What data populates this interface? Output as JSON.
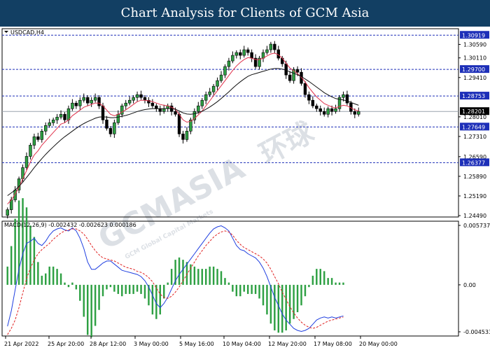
{
  "header": {
    "title": "Chart Analysis for Clients of GCM Asia"
  },
  "symbol": "USDCAD,H4",
  "watermark": {
    "brand": "GCMASIA",
    "sub": "GCM Global Capital Markets",
    "cjk": "环球"
  },
  "chart_data": [
    {
      "type": "candlestick",
      "title": "USDCAD,H4",
      "ylim": [
        1.2449,
        1.311
      ],
      "y_ticks": [
        "1.30590",
        "1.30110",
        "1.29410",
        "1.28010",
        "1.27310",
        "1.26590",
        "1.25890",
        "1.25190",
        "1.24490"
      ],
      "x_ticks": [
        "21 Apr 2022",
        "25 Apr 20:00",
        "28 Apr 12:00",
        "3 May 00:00",
        "5 May 16:00",
        "10 May 04:00",
        "12 May 20:00",
        "17 May 08:00",
        "20 May 00:00"
      ],
      "levels": [
        {
          "value": 1.30919,
          "label": "1.30919"
        },
        {
          "value": 1.297,
          "label": "1.29700"
        },
        {
          "value": 1.28753,
          "label": "1.28753"
        },
        {
          "value": 1.27649,
          "label": "1.27649"
        },
        {
          "value": 1.26377,
          "label": "1.26377"
        }
      ],
      "current_price": {
        "value": 1.28201,
        "label": "1.28201"
      },
      "closes": [
        1.247,
        1.2505,
        1.254,
        1.258,
        1.262,
        1.266,
        1.27,
        1.273,
        1.272,
        1.275,
        1.277,
        1.278,
        1.279,
        1.28,
        1.281,
        1.279,
        1.283,
        1.285,
        1.284,
        1.286,
        1.287,
        1.285,
        1.286,
        1.287,
        1.284,
        1.279,
        1.276,
        1.274,
        1.278,
        1.281,
        1.284,
        1.285,
        1.286,
        1.287,
        1.288,
        1.287,
        1.286,
        1.285,
        1.284,
        1.283,
        1.282,
        1.283,
        1.284,
        1.282,
        1.281,
        1.274,
        1.272,
        1.275,
        1.279,
        1.282,
        1.284,
        1.286,
        1.288,
        1.289,
        1.291,
        1.293,
        1.295,
        1.298,
        1.3,
        1.302,
        1.303,
        1.302,
        1.304,
        1.303,
        1.301,
        1.298,
        1.301,
        1.303,
        1.304,
        1.306,
        1.304,
        1.301,
        1.299,
        1.295,
        1.293,
        1.297,
        1.296,
        1.292,
        1.288,
        1.286,
        1.284,
        1.283,
        1.282,
        1.281,
        1.283,
        1.282,
        1.283,
        1.287,
        1.288,
        1.285,
        1.282,
        1.281,
        1.282
      ],
      "series": [
        {
          "name": "",
          "color": "#e0314b",
          "values": [
            1.249,
            1.2505,
            1.2525,
            1.255,
            1.258,
            1.261,
            1.264,
            1.2665,
            1.268,
            1.27,
            1.2715,
            1.273,
            1.2745,
            1.276,
            1.2775,
            1.278,
            1.279,
            1.2805,
            1.2815,
            1.2825,
            1.2835,
            1.284,
            1.2845,
            1.285,
            1.285,
            1.284,
            1.2825,
            1.281,
            1.2805,
            1.281,
            1.2818,
            1.2826,
            1.2835,
            1.2845,
            1.2855,
            1.286,
            1.286,
            1.2858,
            1.2855,
            1.285,
            1.2845,
            1.2842,
            1.284,
            1.2835,
            1.2828,
            1.281,
            1.279,
            1.2782,
            1.2785,
            1.2795,
            1.2808,
            1.2822,
            1.284,
            1.2858,
            1.2876,
            1.2894,
            1.2912,
            1.293,
            1.2948,
            1.2966,
            1.2982,
            1.2995,
            1.3005,
            1.3012,
            1.301,
            1.3005,
            1.3005,
            1.301,
            1.3018,
            1.3025,
            1.3028,
            1.3022,
            1.301,
            1.2992,
            1.2975,
            1.2965,
            1.2955,
            1.2942,
            1.2925,
            1.2905,
            1.2888,
            1.2872,
            1.286,
            1.2848,
            1.2842,
            1.2836,
            1.2833,
            1.2838,
            1.2842,
            1.284,
            1.2833,
            1.2826,
            1.2822
          ]
        },
        {
          "name": "",
          "color": "#111111",
          "values": [
            1.252,
            1.253,
            1.254,
            1.2553,
            1.2568,
            1.2585,
            1.2602,
            1.262,
            1.2636,
            1.2652,
            1.2667,
            1.2681,
            1.2694,
            1.2707,
            1.2719,
            1.273,
            1.274,
            1.275,
            1.276,
            1.2769,
            1.2777,
            1.2784,
            1.279,
            1.2796,
            1.28,
            1.2801,
            1.28,
            1.2798,
            1.2798,
            1.28,
            1.2803,
            1.2806,
            1.281,
            1.2815,
            1.282,
            1.2824,
            1.2827,
            1.2829,
            1.283,
            1.283,
            1.283,
            1.283,
            1.2831,
            1.283,
            1.2828,
            1.2822,
            1.2815,
            1.2811,
            1.281,
            1.2812,
            1.2816,
            1.2821,
            1.2828,
            1.2836,
            1.2845,
            1.2855,
            1.2866,
            1.2878,
            1.289,
            1.2903,
            1.2915,
            1.2926,
            1.2936,
            1.2945,
            1.2951,
            1.2955,
            1.2959,
            1.2963,
            1.2967,
            1.2971,
            1.2973,
            1.2973,
            1.2971,
            1.2967,
            1.2961,
            1.2956,
            1.2951,
            1.2944,
            1.2936,
            1.2927,
            1.2917,
            1.2907,
            1.2897,
            1.2887,
            1.2879,
            1.2872,
            1.2866,
            1.2863,
            1.2861,
            1.2857,
            1.2852,
            1.2847,
            1.2842
          ]
        }
      ]
    },
    {
      "type": "macd",
      "title": "MACD(12,26,9) -0.002432 -0.002623 0.000186",
      "params": "MACD(12,26,9)",
      "values_label": {
        "macd": "-0.002432",
        "signal": "-0.002623",
        "hist": "0.000186"
      },
      "ylim": [
        -0.004533,
        0.005737
      ],
      "y_ticks": [
        "0.005737",
        "0.00",
        "-0.004533"
      ],
      "series": [
        {
          "name": "",
          "color": "#1f3fe0",
          "values": [
            -0.004,
            -0.0025,
            -0.0005,
            0.0015,
            0.003,
            0.004,
            0.0042,
            0.0045,
            0.004,
            0.0038,
            0.0042,
            0.0048,
            0.0052,
            0.0054,
            0.0055,
            0.0053,
            0.0052,
            0.0055,
            0.0052,
            0.0045,
            0.0035,
            0.0022,
            0.0015,
            0.0015,
            0.0018,
            0.0021,
            0.0023,
            0.0023,
            0.002,
            0.0017,
            0.0014,
            0.0013,
            0.0012,
            0.0011,
            0.001,
            0.0008,
            0.0004,
            -0.0002,
            -0.001,
            -0.0018,
            -0.0022,
            -0.0018,
            -0.0012,
            -0.0004,
            0.0004,
            0.001,
            0.0015,
            0.002,
            0.0025,
            0.003,
            0.0035,
            0.004,
            0.0045,
            0.005,
            0.0054,
            0.0056,
            0.0057,
            0.0055,
            0.0052,
            0.0045,
            0.0038,
            0.0034,
            0.0033,
            0.003,
            0.0028,
            0.0026,
            0.0022,
            0.0016,
            0.0008,
            -0.0002,
            -0.0012,
            -0.002,
            -0.0028,
            -0.0034,
            -0.0038,
            -0.0042,
            -0.0044,
            -0.0045,
            -0.0044,
            -0.0042,
            -0.0038,
            -0.0034,
            -0.0032,
            -0.0031,
            -0.0032,
            -0.0031,
            -0.0032,
            -0.0031,
            -0.003
          ]
        },
        {
          "name": "",
          "color": "#e02020",
          "values": [
            -0.0048,
            -0.0042,
            -0.0034,
            -0.0022,
            -0.0008,
            0.0006,
            0.0016,
            0.0024,
            0.003,
            0.0034,
            0.0037,
            0.004,
            0.0044,
            0.0047,
            0.005,
            0.0052,
            0.0053,
            0.0054,
            0.0054,
            0.0052,
            0.0049,
            0.0044,
            0.0038,
            0.0033,
            0.0029,
            0.0026,
            0.0025,
            0.0024,
            0.0023,
            0.0021,
            0.0019,
            0.0017,
            0.0016,
            0.0015,
            0.0013,
            0.0012,
            0.001,
            0.0007,
            0.0003,
            -0.0003,
            -0.0009,
            -0.0012,
            -0.0013,
            -0.0011,
            -0.0007,
            -0.0002,
            0.0004,
            0.001,
            0.0016,
            0.0022,
            0.0028,
            0.0033,
            0.0038,
            0.0042,
            0.0046,
            0.0049,
            0.0051,
            0.0052,
            0.0051,
            0.0048,
            0.0043,
            0.0039,
            0.0036,
            0.0034,
            0.0032,
            0.003,
            0.0028,
            0.0025,
            0.0021,
            0.0015,
            0.0008,
            0.0001,
            -0.0007,
            -0.0014,
            -0.0021,
            -0.0027,
            -0.0032,
            -0.0036,
            -0.0039,
            -0.0041,
            -0.0042,
            -0.0041,
            -0.0039,
            -0.0037,
            -0.0035,
            -0.0034,
            -0.0033,
            -0.0032,
            -0.0031
          ]
        }
      ]
    }
  ]
}
